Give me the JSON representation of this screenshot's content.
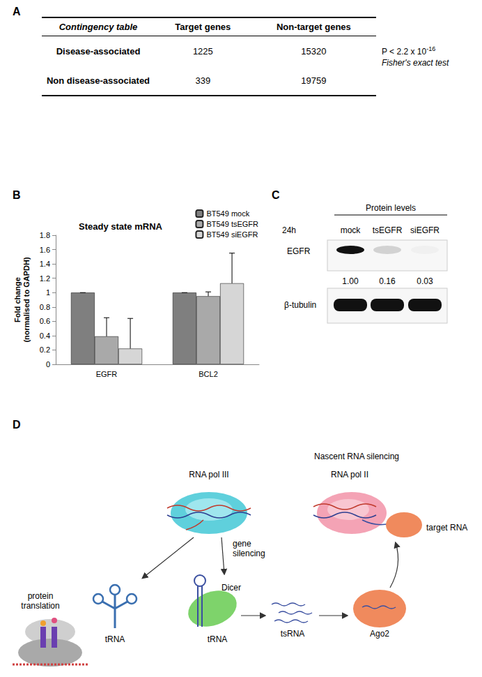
{
  "panel_labels": [
    "A",
    "B",
    "C",
    "D"
  ],
  "table": {
    "header": [
      "Contingency table",
      "Target genes",
      "Non-target genes"
    ],
    "rows": [
      [
        "Disease-associated",
        1225,
        15320
      ],
      [
        "Non disease-associated",
        339,
        19759
      ]
    ],
    "p_value": {
      "text": "P < 2.2 x 10",
      "exponent": "-16"
    },
    "test": "Fisher's exact test"
  },
  "chart_data": {
    "type": "bar",
    "title": "Steady state mRNA",
    "ylabel": "Fold change\n(normalised to GAPDH)",
    "categories": [
      "EGFR",
      "BCL2"
    ],
    "series": [
      {
        "name": "BT549 mock",
        "color": "#7f7f7f",
        "values": [
          1,
          1
        ],
        "errors": [
          0,
          0
        ]
      },
      {
        "name": "BT549 tsEGFR",
        "color": "#a9a9a9",
        "values": [
          0.39,
          0.95
        ],
        "errors": [
          0.26,
          0.06
        ]
      },
      {
        "name": "BT549 siEGFR",
        "color": "#d6d6d6",
        "values": [
          0.22,
          1.13
        ],
        "errors": [
          0.42,
          0.42
        ]
      }
    ],
    "ylim": [
      0,
      1.8
    ],
    "yticks": [
      0,
      0.2,
      0.4,
      0.6,
      0.8,
      1,
      1.2,
      1.4,
      1.6,
      1.8
    ],
    "grid": false,
    "legend": "top-right"
  },
  "blot": {
    "title": "Protein levels",
    "time": "24h",
    "lanes": [
      "mock",
      "tsEGFR",
      "siEGFR"
    ],
    "bands": [
      {
        "label": "EGFR",
        "quantification": [
          "1.00",
          "0.16",
          "0.03"
        ]
      },
      {
        "label": "β-tubulin"
      }
    ]
  },
  "diagram": {
    "title": "Nascent RNA silencing",
    "pol3": "RNA pol III",
    "pol2": "RNA pol II",
    "target": "target RNA",
    "gene_silencing": "gene silencing",
    "protein_translation": "protein translation",
    "trna_left": "tRNA",
    "dicer": "Dicer",
    "trna_right": "tRNA",
    "tsrna": "tsRNA",
    "ago2": "Ago2"
  }
}
